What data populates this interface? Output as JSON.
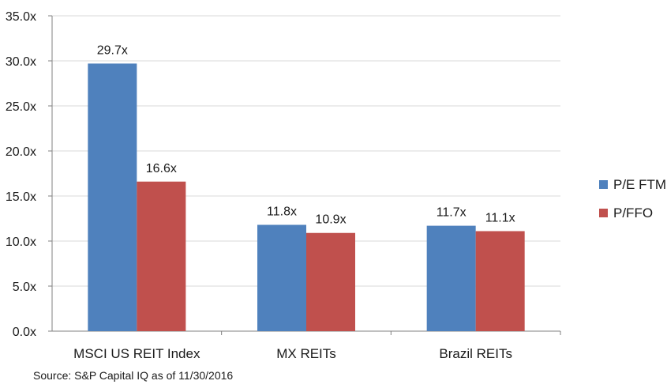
{
  "chart_data": {
    "type": "bar",
    "categories": [
      "MSCI US REIT Index",
      "MX REITs",
      "Brazil REITs"
    ],
    "series": [
      {
        "name": "P/E FTM",
        "values": [
          29.7,
          11.8,
          11.7
        ],
        "labels": [
          "29.7x",
          "11.8x",
          "11.7x"
        ],
        "color": "#4f81bd"
      },
      {
        "name": "P/FFO",
        "values": [
          16.6,
          10.9,
          11.1
        ],
        "labels": [
          "16.6x",
          "10.9x",
          "11.1x"
        ],
        "color": "#c0504d"
      }
    ],
    "ylim": [
      0,
      35
    ],
    "yticks": [
      0,
      5,
      10,
      15,
      20,
      25,
      30,
      35
    ],
    "ytick_labels": [
      "0.0x",
      "5.0x",
      "10.0x",
      "15.0x",
      "20.0x",
      "25.0x",
      "30.0x",
      "35.0x"
    ],
    "grid": true,
    "legend": "right",
    "xlabel": "",
    "ylabel": "",
    "title": ""
  },
  "source": "Source: S&P Capital IQ as of 11/30/2016"
}
